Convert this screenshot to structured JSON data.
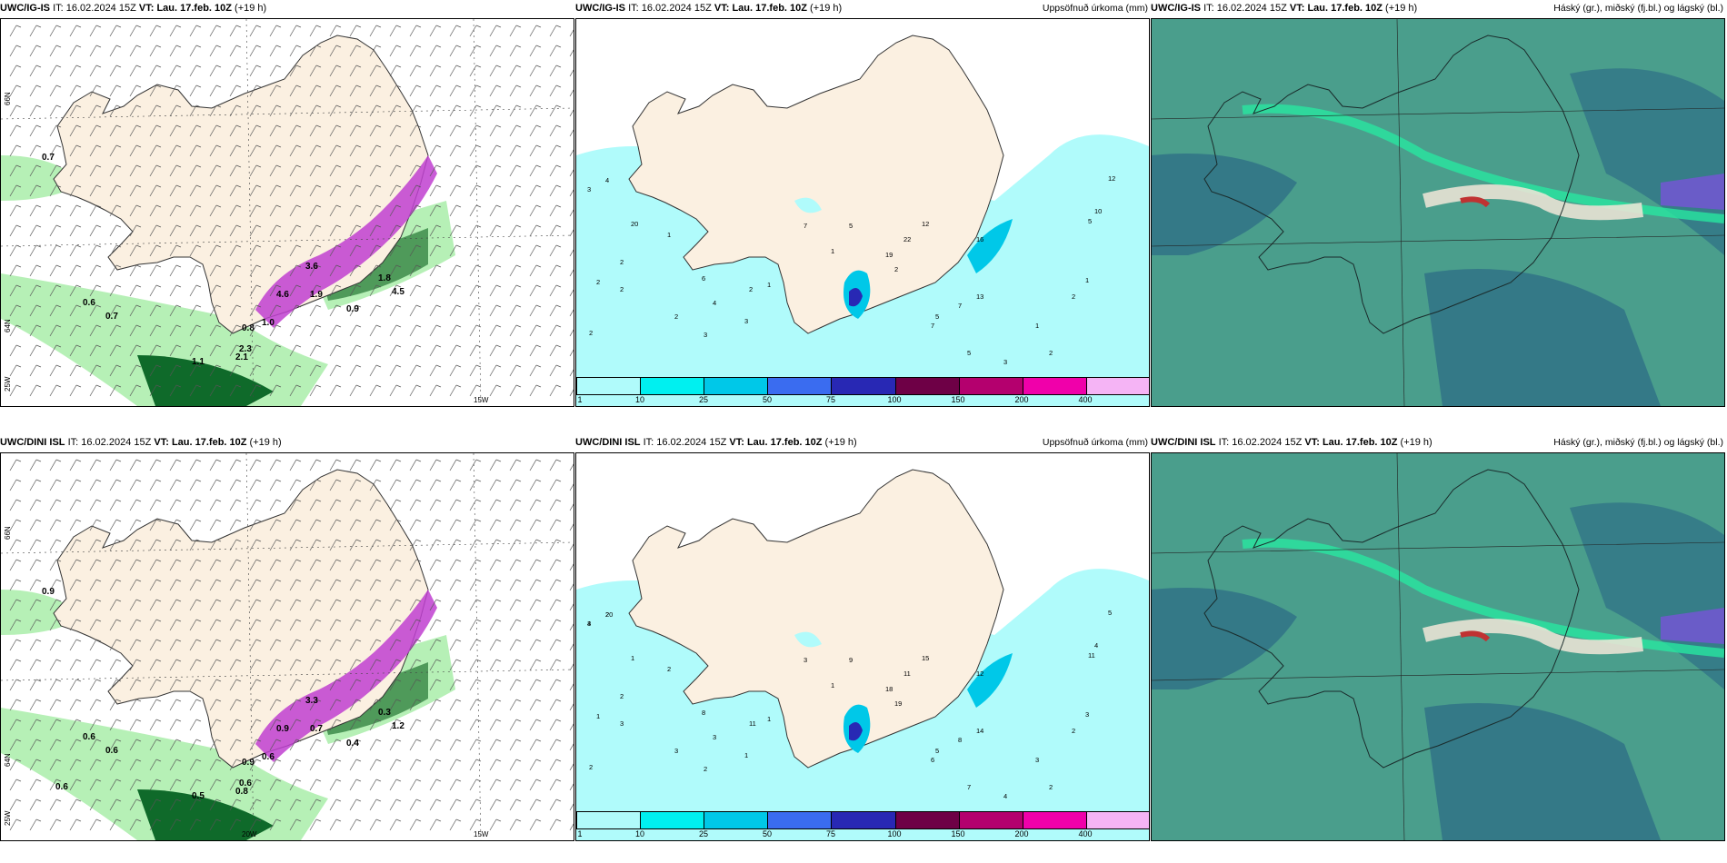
{
  "panels": [
    {
      "source": "UWC/IG-IS",
      "it_label": "IT:",
      "it_value": "16.02.2024 15Z",
      "vt_label": "VT:",
      "vt_value": "Lau. 17.feb. 10Z",
      "lead": "(+19 h)",
      "right_title": "",
      "kind": "wind",
      "lat_labels": [
        "66N",
        "64N",
        "25W"
      ],
      "lon_labels": [
        "15W"
      ],
      "values": [
        "0.7",
        "0.6",
        "0.7",
        "0.8",
        "1.0",
        "2.3",
        "2.1",
        "1.1",
        "4.6",
        "1.8",
        "0.9",
        "1.9",
        "4.5",
        "3.6"
      ]
    },
    {
      "source": "UWC/IG-IS",
      "it_label": "IT:",
      "it_value": "16.02.2024 15Z",
      "vt_label": "VT:",
      "vt_value": "Lau. 17.feb. 10Z",
      "lead": "(+19 h)",
      "right_title": "Uppsöfnuð úrkoma (mm)",
      "kind": "precip",
      "values": [
        "3",
        "4",
        "20",
        "1",
        "2",
        "2",
        "2",
        "2",
        "2",
        "3",
        "3",
        "2",
        "6",
        "1",
        "4",
        "7",
        "5",
        "1",
        "2",
        "19",
        "22",
        "7",
        "12",
        "16",
        "13",
        "7",
        "5",
        "5",
        "3",
        "1",
        "2",
        "2",
        "1",
        "5",
        "10",
        "12"
      ]
    },
    {
      "source": "UWC/IG-IS",
      "it_label": "IT:",
      "it_value": "16.02.2024 15Z",
      "vt_label": "VT:",
      "vt_value": "Lau. 17.feb. 10Z",
      "lead": "(+19 h)",
      "right_title": "Háský (gr.), miðský (fj.bl.) og lágský (bl.)",
      "kind": "cloud"
    },
    {
      "source": "UWC/DINI ISL",
      "it_label": "IT:",
      "it_value": "16.02.2024 15Z",
      "vt_label": "VT:",
      "vt_value": "Lau. 17.feb. 10Z",
      "lead": "(+19 h)",
      "right_title": "",
      "kind": "wind",
      "lat_labels": [
        "66N",
        "64N",
        "25W"
      ],
      "lon_labels": [
        "20W",
        "15W"
      ],
      "values": [
        "0.9",
        "0.6",
        "0.6",
        "0.9",
        "0.6",
        "0.6",
        "0.8",
        "0.5",
        "0.9",
        "0.3",
        "0.4",
        "0.7",
        "1.2",
        "3.3",
        "0.6"
      ]
    },
    {
      "source": "UWC/DINI ISL",
      "it_label": "IT:",
      "it_value": "16.02.2024 15Z",
      "vt_label": "VT:",
      "vt_value": "Lau. 17.feb. 10Z",
      "lead": "(+19 h)",
      "right_title": "Uppsöfnuð úrkoma (mm)",
      "kind": "precip",
      "values": [
        "4",
        "20",
        "1",
        "2",
        "2",
        "1",
        "3",
        "2",
        "3",
        "2",
        "1",
        "11",
        "8",
        "1",
        "3",
        "3",
        "9",
        "1",
        "19",
        "18",
        "11",
        "6",
        "15",
        "12",
        "14",
        "8",
        "5",
        "7",
        "4",
        "3",
        "2",
        "2",
        "3",
        "11",
        "4",
        "5",
        "3",
        "2"
      ]
    },
    {
      "source": "UWC/DINI ISL",
      "it_label": "IT:",
      "it_value": "16.02.2024 15Z",
      "vt_label": "VT:",
      "vt_value": "Lau. 17.feb. 10Z",
      "lead": "(+19 h)",
      "right_title": "Háský (gr.), miðský (fj.bl.) og lágský (bl.)",
      "kind": "cloud"
    }
  ],
  "colorbar": {
    "ticks": [
      "1",
      "10",
      "25",
      "50",
      "75",
      "100",
      "150",
      "200",
      "400"
    ],
    "colors": [
      "#b0fbfb",
      "#00f0f0",
      "#00c8e8",
      "#3a6cf0",
      "#2828b4",
      "#6e0046",
      "#b4006e",
      "#f000aa",
      "#f5b4f5"
    ]
  },
  "map_colors": {
    "land": "#fbf0e1",
    "sea": "#ffffff",
    "precip_light": "#b0fbfb",
    "green_light": "#b6f0b6",
    "green_dark": "#0f6a2a",
    "magenta": "#c040d0",
    "cloud_base": "#4a9e8c",
    "cloud_dark": "#2e6f86",
    "cloud_green": "#28e6a0"
  }
}
